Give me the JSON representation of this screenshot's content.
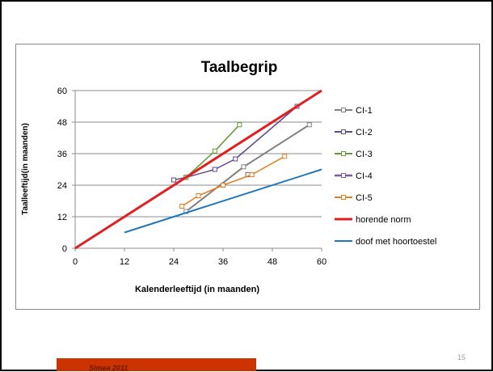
{
  "chart_data": {
    "type": "line",
    "title": "Taalbegrip",
    "xlabel": "Kalenderleeftijd (in maanden)",
    "ylabel": "Taalleeftijd(in maanden)",
    "xlim": [
      0,
      60
    ],
    "ylim": [
      0,
      60
    ],
    "xticks": [
      0,
      12,
      24,
      36,
      48,
      60
    ],
    "yticks": [
      0,
      12,
      24,
      36,
      48,
      60
    ],
    "grid": "horizontal",
    "legend_position": "right",
    "series": [
      {
        "name": "CI-1",
        "color": "#808080",
        "marker": "square",
        "width": 2,
        "points": [
          [
            27,
            14
          ],
          [
            41,
            31
          ],
          [
            57,
            47
          ]
        ]
      },
      {
        "name": "CI-2",
        "color": "#604a8b",
        "marker": "square",
        "width": 1.5,
        "points": [
          [
            24,
            26
          ],
          [
            27,
            27
          ],
          [
            34,
            30
          ],
          [
            39,
            34
          ],
          [
            54,
            54
          ]
        ]
      },
      {
        "name": "CI-3",
        "color": "#669933",
        "marker": "square",
        "width": 1.5,
        "points": [
          [
            27,
            27
          ],
          [
            34,
            37
          ],
          [
            40,
            47
          ]
        ]
      },
      {
        "name": "CI-4",
        "color": "#7b5aa6",
        "marker": "square",
        "width": 2.5,
        "points": [
          [
            42,
            28
          ],
          [
            43,
            28
          ]
        ]
      },
      {
        "name": "CI-5",
        "color": "#e87d1e",
        "marker": "square",
        "width": 1.5,
        "points": [
          [
            26,
            16
          ],
          [
            30,
            20
          ],
          [
            36,
            24
          ],
          [
            43,
            28
          ],
          [
            51,
            35
          ]
        ]
      },
      {
        "name": "horende norm",
        "color": "#e02020",
        "marker": "none",
        "width": 3,
        "points": [
          [
            0,
            0
          ],
          [
            60,
            60
          ]
        ]
      },
      {
        "name": "doof met hoortoestel",
        "color": "#2277bb",
        "marker": "none",
        "width": 2,
        "points": [
          [
            12,
            6
          ],
          [
            24,
            12
          ],
          [
            60,
            30
          ]
        ]
      }
    ]
  },
  "footer": {
    "text": "Simea 2011",
    "page_number": "15"
  }
}
